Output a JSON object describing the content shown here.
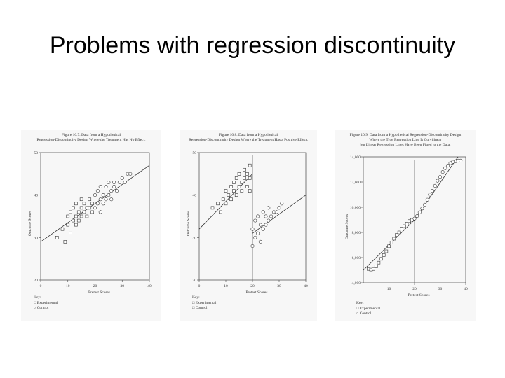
{
  "slide": {
    "title": "Problems with regression discontinuity"
  },
  "chart_data": [
    {
      "type": "scatter",
      "title_lines": [
        "Figure 10.7. Data from a Hypothetical",
        "Regression-Discontinuity Design Where the Treatment Has No Effect."
      ],
      "xlabel": "Pretest Scores",
      "ylabel": "Outcome Scores",
      "xlim": [
        0,
        40
      ],
      "ylim": [
        20,
        50
      ],
      "xticks": [
        "0",
        "10",
        "20",
        "30",
        "40"
      ],
      "yticks": [
        "20",
        "30",
        "40",
        "50"
      ],
      "cutoff": 20,
      "regression_lines": [
        {
          "x": [
            0,
            40
          ],
          "y": [
            29,
            47
          ]
        }
      ],
      "legend": {
        "title": "Key:",
        "items": [
          "Experimental",
          "Control"
        ]
      },
      "series": [
        {
          "marker": "square",
          "x": [
            6,
            8,
            9,
            10,
            10,
            11,
            11,
            12,
            12,
            13,
            13,
            13,
            14,
            14,
            15,
            15,
            15,
            16,
            16,
            17,
            17,
            18,
            18,
            19,
            19
          ],
          "y": [
            30,
            32,
            29,
            33,
            35,
            31,
            36,
            34,
            37,
            33,
            35,
            38,
            34,
            36,
            35,
            37,
            39,
            36,
            38,
            35,
            37,
            37,
            39,
            36,
            38
          ]
        },
        {
          "marker": "circle",
          "x": [
            20,
            20,
            21,
            21,
            22,
            22,
            22,
            23,
            23,
            24,
            24,
            25,
            25,
            26,
            26,
            27,
            27,
            28,
            29,
            30,
            31,
            32,
            33
          ],
          "y": [
            37,
            40,
            38,
            41,
            36,
            39,
            42,
            38,
            40,
            39,
            42,
            40,
            43,
            41,
            39,
            42,
            43,
            41,
            43,
            44,
            43,
            45,
            45
          ]
        }
      ]
    },
    {
      "type": "scatter",
      "title_lines": [
        "Figure 10.8. Data from a Hypothetical",
        "Regression-Discontinuity Design Where the Treatment Has a Positive Effect."
      ],
      "xlabel": "Pretest Scores",
      "ylabel": "Outcome Scores",
      "xlim": [
        0,
        40
      ],
      "ylim": [
        20,
        50
      ],
      "xticks": [
        "0",
        "10",
        "20",
        "30",
        "40"
      ],
      "yticks": [
        "20",
        "30",
        "40",
        "50"
      ],
      "cutoff": 20,
      "regression_lines": [
        {
          "x": [
            0,
            20
          ],
          "y": [
            32,
            45
          ]
        },
        {
          "x": [
            20,
            40
          ],
          "y": [
            31,
            40
          ]
        }
      ],
      "legend": {
        "title": "Key:",
        "items": [
          "Experimental",
          "Control"
        ]
      },
      "series": [
        {
          "marker": "square",
          "x": [
            5,
            7,
            8,
            9,
            10,
            10,
            11,
            12,
            12,
            13,
            13,
            14,
            14,
            15,
            15,
            16,
            16,
            17,
            17,
            18,
            18,
            19,
            19,
            19
          ],
          "y": [
            37,
            38,
            36,
            39,
            41,
            38,
            40,
            42,
            39,
            41,
            43,
            40,
            44,
            42,
            45,
            41,
            43,
            44,
            46,
            42,
            45,
            44,
            47,
            41
          ]
        },
        {
          "marker": "circle",
          "x": [
            20,
            20,
            21,
            21,
            22,
            22,
            23,
            23,
            24,
            24,
            25,
            25,
            26,
            26,
            27,
            28,
            29,
            30,
            31
          ],
          "y": [
            28,
            32,
            30,
            34,
            31,
            35,
            29,
            33,
            32,
            36,
            33,
            35,
            34,
            37,
            35,
            36,
            36,
            37,
            38
          ]
        }
      ]
    },
    {
      "type": "scatter",
      "title_lines": [
        "Figure 10.9. Data from a Hypothetical Regression-Discontinuity Design",
        "Where the True Regression Line Is Curvilinear",
        "but Linear Regression Lines Have Been Fitted to the Data."
      ],
      "xlabel": "Pretest Scores",
      "ylabel": "Outcome Scores",
      "xlim": [
        0,
        40
      ],
      "ylim": [
        4000,
        14000
      ],
      "xticks": [
        "10",
        "20",
        "30",
        "40"
      ],
      "yticks": [
        "4,000",
        "6,000",
        "8,000",
        "10,000",
        "12,000",
        "14,000"
      ],
      "cutoff": 20,
      "regression_lines": [
        {
          "x": [
            0,
            20
          ],
          "y": [
            5000,
            9000
          ]
        },
        {
          "x": [
            20,
            37
          ],
          "y": [
            9000,
            14000
          ]
        }
      ],
      "legend": {
        "title": "Key:",
        "items": [
          "Experimental",
          "Control"
        ]
      },
      "series": [
        {
          "marker": "square",
          "x": [
            2,
            3,
            4,
            5,
            6,
            7,
            8,
            9,
            10,
            11,
            12,
            13,
            14,
            15,
            16,
            17,
            18,
            19
          ],
          "y": [
            5100,
            5050,
            5100,
            5300,
            5600,
            5900,
            6200,
            6500,
            6900,
            7200,
            7500,
            7800,
            8000,
            8300,
            8500,
            8700,
            8900,
            9000
          ]
        },
        {
          "marker": "circle",
          "x": [
            20,
            21,
            22,
            23,
            24,
            25,
            26,
            27,
            28,
            29,
            30,
            31,
            32,
            33,
            34,
            35,
            36,
            37,
            38
          ],
          "y": [
            9100,
            9300,
            9600,
            9900,
            10200,
            10600,
            11000,
            11300,
            11700,
            12100,
            12400,
            12800,
            13100,
            13300,
            13500,
            13600,
            13650,
            13700,
            13700
          ]
        }
      ]
    }
  ]
}
